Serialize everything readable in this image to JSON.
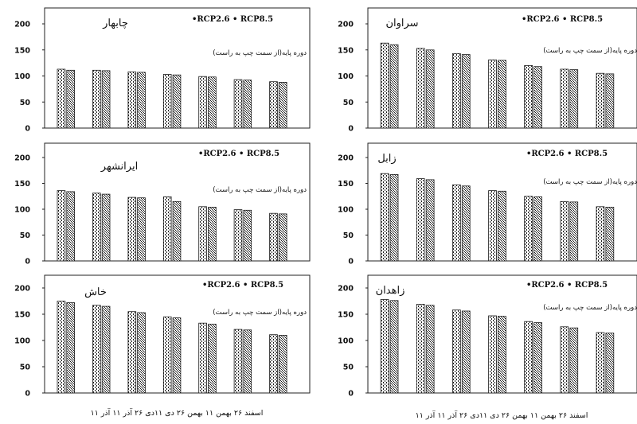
{
  "legend_text": "•RCP2.6 • RCP8.5",
  "legend_note": "دوره پایه(از سمت چپ به راست)",
  "x_axis_label_left": "۱۱ اسفند ۲۶ بهمن ۱۱ بهمن ۲۶ دی ۱۱دی ۲۶ آذر ۱۱ آذر",
  "x_axis_label_right": "۱۱ اسفند ۲۶ بهمن ۱۱ بهمن ۲۶ دی ۱۱دی ۲۶ آذر ۱۱ آذر",
  "colors": {
    "bar_fill": "#ffffff",
    "bar_pattern": "#1a1a1a",
    "frame": "#222222"
  },
  "chart_data": [
    {
      "type": "bar",
      "title": "چابهار",
      "ylim": [
        0,
        200
      ],
      "yticks": [
        0,
        50,
        100,
        150,
        200
      ],
      "ytick_labels": [
        "0",
        "50",
        "100",
        "150",
        "200"
      ],
      "series": [
        {
          "values": [
            113,
            111,
            108,
            103,
            99,
            93,
            89
          ]
        },
        {
          "values": [
            111,
            110,
            107,
            102,
            98,
            92,
            88
          ]
        }
      ]
    },
    {
      "type": "bar",
      "title": "سراوان",
      "ylim": [
        0,
        200
      ],
      "yticks": [
        0,
        50,
        100,
        150,
        200
      ],
      "ytick_labels": [
        "0",
        "50",
        "100",
        "150",
        "200"
      ],
      "series": [
        {
          "values": [
            163,
            153,
            143,
            131,
            120,
            113,
            105
          ]
        },
        {
          "values": [
            160,
            150,
            141,
            130,
            118,
            112,
            104
          ]
        }
      ]
    },
    {
      "type": "bar",
      "title": "ایرانشهر",
      "ylim": [
        0,
        200
      ],
      "yticks": [
        0,
        50,
        100,
        150,
        200
      ],
      "ytick_labels": [
        "0",
        "50",
        "100",
        "150",
        "200"
      ],
      "series": [
        {
          "values": [
            136,
            131,
            123,
            124,
            105,
            99,
            92
          ]
        },
        {
          "values": [
            134,
            129,
            122,
            115,
            104,
            98,
            91
          ]
        }
      ]
    },
    {
      "type": "bar",
      "title": "زابل",
      "ylim": [
        0,
        200
      ],
      "yticks": [
        0,
        50,
        100,
        150,
        200
      ],
      "ytick_labels": [
        "0",
        "50",
        "100",
        "150",
        "200"
      ],
      "series": [
        {
          "values": [
            169,
            159,
            147,
            136,
            125,
            115,
            105
          ]
        },
        {
          "values": [
            167,
            157,
            145,
            135,
            124,
            114,
            104
          ]
        }
      ]
    },
    {
      "type": "bar",
      "title": "خاش",
      "ylim": [
        0,
        200
      ],
      "yticks": [
        0,
        50,
        100,
        150,
        200
      ],
      "ytick_labels": [
        "0",
        "50",
        "100",
        "150",
        "200"
      ],
      "series": [
        {
          "values": [
            175,
            167,
            155,
            145,
            133,
            121,
            111
          ]
        },
        {
          "values": [
            172,
            165,
            153,
            143,
            131,
            120,
            110
          ]
        }
      ]
    },
    {
      "type": "bar",
      "title": "زاهدان",
      "ylim": [
        0,
        200
      ],
      "yticks": [
        0,
        50,
        100,
        150,
        200
      ],
      "ytick_labels": [
        "0",
        "50",
        "100",
        "150",
        "200"
      ],
      "series": [
        {
          "values": [
            178,
            169,
            158,
            147,
            136,
            126,
            115
          ]
        },
        {
          "values": [
            176,
            167,
            156,
            146,
            134,
            124,
            114
          ]
        }
      ]
    }
  ]
}
